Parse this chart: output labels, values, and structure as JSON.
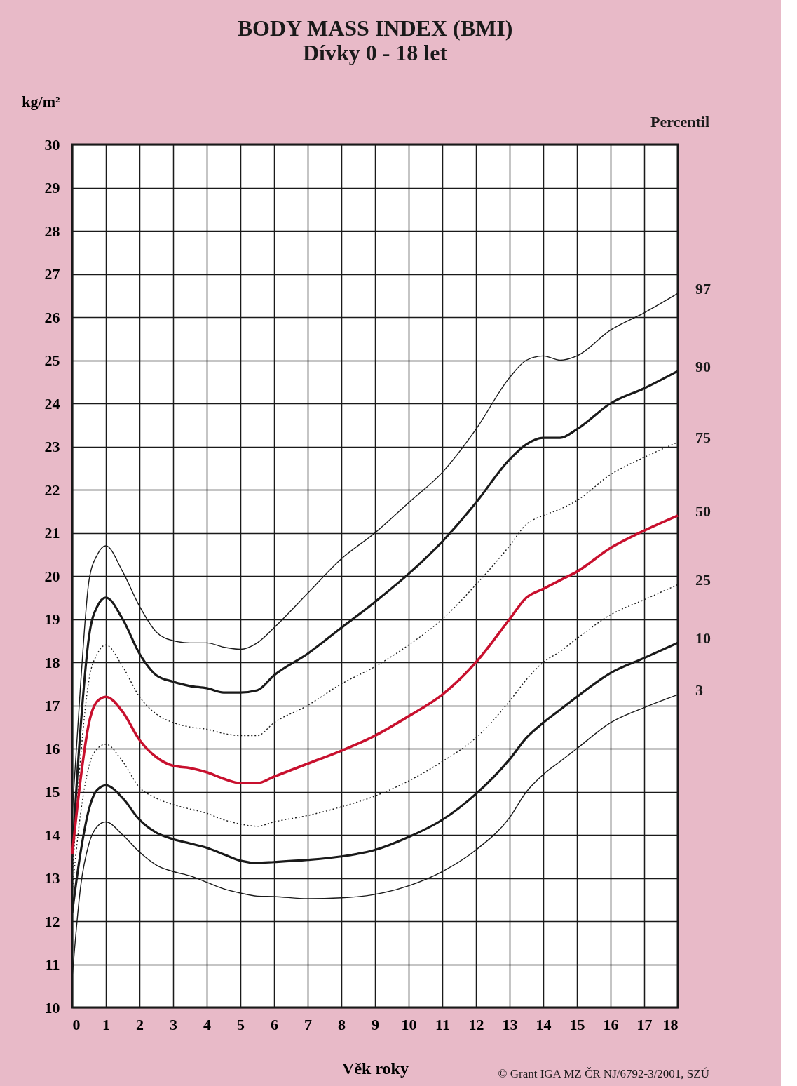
{
  "chart_data": {
    "type": "line",
    "title": "BODY MASS INDEX (BMI)",
    "subtitle": "Dívky 0 - 18 let",
    "xlabel": "Věk roky",
    "ylabel": "kg/m²",
    "x": [
      0,
      0.25,
      0.5,
      0.75,
      1,
      1.5,
      2,
      2.5,
      3,
      3.5,
      4,
      4.5,
      5,
      5.5,
      6,
      7,
      8,
      9,
      10,
      11,
      12,
      13,
      13.5,
      14,
      14.5,
      15,
      16,
      17,
      18
    ],
    "series": [
      {
        "name": "97",
        "color": "#1a1a1a",
        "line_style": "solid",
        "values": [
          14.5,
          17.5,
          19.9,
          20.5,
          20.7,
          20.1,
          19.3,
          18.7,
          18.5,
          18.45,
          18.45,
          18.35,
          18.3,
          18.45,
          18.8,
          19.6,
          20.4,
          21.0,
          21.7,
          22.4,
          23.4,
          24.6,
          25.0,
          25.1,
          25.0,
          25.1,
          25.7,
          26.1,
          26.55
        ]
      },
      {
        "name": "90",
        "color": "#1a1a1a",
        "line_style": "solid",
        "values": [
          13.5,
          16.5,
          18.6,
          19.3,
          19.5,
          19.0,
          18.2,
          17.7,
          17.55,
          17.45,
          17.4,
          17.3,
          17.3,
          17.35,
          17.7,
          18.2,
          18.8,
          19.4,
          20.05,
          20.8,
          21.7,
          22.7,
          23.05,
          23.2,
          23.2,
          23.4,
          24.0,
          24.35,
          24.75
        ]
      },
      {
        "name": "75",
        "color": "#1a1a1a",
        "line_style": "dotted",
        "values": [
          13.0,
          15.8,
          17.6,
          18.2,
          18.4,
          17.9,
          17.2,
          16.8,
          16.6,
          16.5,
          16.45,
          16.35,
          16.3,
          16.3,
          16.6,
          17.0,
          17.5,
          17.9,
          18.4,
          19.0,
          19.8,
          20.7,
          21.2,
          21.4,
          21.55,
          21.75,
          22.35,
          22.75,
          23.1
        ]
      },
      {
        "name": "50",
        "color": "#c8102e",
        "line_style": "solid",
        "values": [
          13.55,
          15.3,
          16.6,
          17.1,
          17.2,
          16.85,
          16.2,
          15.8,
          15.6,
          15.55,
          15.45,
          15.3,
          15.2,
          15.2,
          15.35,
          15.65,
          15.95,
          16.3,
          16.75,
          17.25,
          18.0,
          19.0,
          19.5,
          19.7,
          19.9,
          20.1,
          20.65,
          21.05,
          21.4
        ]
      },
      {
        "name": "25",
        "color": "#1a1a1a",
        "line_style": "dotted",
        "values": [
          12.7,
          14.5,
          15.6,
          16.0,
          16.1,
          15.7,
          15.1,
          14.85,
          14.7,
          14.6,
          14.5,
          14.35,
          14.25,
          14.2,
          14.3,
          14.45,
          14.65,
          14.9,
          15.25,
          15.7,
          16.25,
          17.1,
          17.6,
          18.0,
          18.25,
          18.55,
          19.1,
          19.45,
          19.8
        ]
      },
      {
        "name": "10",
        "color": "#1a1a1a",
        "line_style": "solid",
        "values": [
          12.2,
          13.6,
          14.6,
          15.05,
          15.15,
          14.85,
          14.35,
          14.05,
          13.9,
          13.8,
          13.7,
          13.55,
          13.4,
          13.35,
          13.37,
          13.42,
          13.5,
          13.65,
          13.95,
          14.35,
          14.95,
          15.75,
          16.25,
          16.6,
          16.9,
          17.2,
          17.75,
          18.1,
          18.45
        ]
      },
      {
        "name": "3",
        "color": "#1a1a1a",
        "line_style": "solid",
        "values": [
          10.7,
          12.8,
          13.8,
          14.2,
          14.3,
          14.0,
          13.6,
          13.3,
          13.15,
          13.05,
          12.9,
          12.75,
          12.65,
          12.58,
          12.57,
          12.52,
          12.54,
          12.62,
          12.82,
          13.15,
          13.65,
          14.4,
          15.0,
          15.4,
          15.7,
          16.0,
          16.6,
          16.95,
          17.25
        ]
      }
    ],
    "xlim": [
      0,
      18
    ],
    "xticks": [
      0,
      1,
      2,
      3,
      4,
      5,
      6,
      7,
      8,
      9,
      10,
      11,
      12,
      13,
      14,
      15,
      16,
      17,
      18
    ],
    "ylim": [
      10,
      30
    ],
    "yticks": [
      10,
      11,
      12,
      13,
      14,
      15,
      16,
      17,
      18,
      19,
      20,
      21,
      22,
      23,
      24,
      25,
      26,
      27,
      28,
      29,
      30
    ],
    "grid": true,
    "marker": "none",
    "annotations": [
      "Percentil",
      "© Grant IGA MZ ČR NJ/6792-3/2001, SZÚ"
    ]
  }
}
